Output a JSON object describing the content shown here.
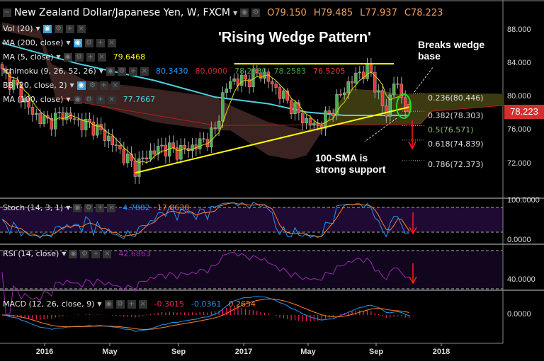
{
  "header": {
    "symbol_title": "New Zealand Dollar/Japanese Yen, W, FXCM",
    "open": "O79.150",
    "high": "H79.485",
    "low": "L77.937",
    "close": "C78.223"
  },
  "indicators": [
    {
      "label": "Vol (20)",
      "values": []
    },
    {
      "label": "MA (200, close)",
      "values": []
    },
    {
      "label": "MA (5, close)",
      "values": [
        {
          "v": "79.6468",
          "color": "#ffff00"
        }
      ]
    },
    {
      "label": "Ichimoku (9, 26, 52, 26)",
      "values": [
        {
          "v": "80.3430",
          "color": "#2196f3"
        },
        {
          "v": "80.0900",
          "color": "#c62828"
        },
        {
          "v": "78.2230",
          "color": "#43a047"
        },
        {
          "v": "78.2583",
          "color": "#43a047"
        },
        {
          "v": "76.5205",
          "color": "#e53935"
        }
      ]
    },
    {
      "label": "BB (20, close, 2)",
      "values": []
    },
    {
      "label": "MA (100, close)",
      "values": [
        {
          "v": "77.7667",
          "color": "#4dd0e1"
        }
      ]
    }
  ],
  "annotations": {
    "title": "'Rising Wedge Pattern'",
    "breaks": "Breaks wedge base",
    "support": "100-SMA is strong support"
  },
  "fib_levels": [
    "0.236(80.446)",
    "0.382(78.303)",
    "0.5(76.571)",
    "0.618(74.839)",
    "0.786(72.373)"
  ],
  "price_axis": [
    "88.000",
    "84.000",
    "80.000",
    "76.000",
    "72.000"
  ],
  "last_price": "78.223",
  "stoch": {
    "label": "Stoch (14, 3, 1)",
    "k": "4.7882",
    "d": "17.8638",
    "axis": [
      "100.0000",
      "0.0000"
    ]
  },
  "rsi": {
    "label": "RSI (14, close)",
    "value": "42.6863",
    "axis": [
      "40.0000"
    ]
  },
  "macd": {
    "label": "MACD (12, 26, close, 9)",
    "hist": "-0.3015",
    "macd": "-0.0361",
    "signal": "0.2654",
    "axis": [
      "0.0000"
    ]
  },
  "time_axis": [
    "2016",
    "May",
    "Sep",
    "2017",
    "May",
    "Sep",
    "2018"
  ],
  "colors": {
    "up": "#4caf50",
    "down": "#e53935",
    "accent": "#d32f2f"
  },
  "chart_data": {
    "type": "candlestick",
    "title": "New Zealand Dollar/Japanese Yen, W, FXCM",
    "interval": "weekly",
    "ylim": [
      69,
      90
    ],
    "close_anchors_week_price": [
      [
        0,
        83
      ],
      [
        4,
        81
      ],
      [
        8,
        78
      ],
      [
        12,
        77
      ],
      [
        16,
        78
      ],
      [
        20,
        77
      ],
      [
        24,
        76.5
      ],
      [
        28,
        75
      ],
      [
        32,
        73
      ],
      [
        35,
        71.5
      ],
      [
        38,
        73
      ],
      [
        42,
        74
      ],
      [
        46,
        73.5
      ],
      [
        50,
        74
      ],
      [
        54,
        75
      ],
      [
        56,
        76
      ],
      [
        58,
        80
      ],
      [
        60,
        82
      ],
      [
        64,
        82
      ],
      [
        68,
        83
      ],
      [
        72,
        81
      ],
      [
        76,
        79
      ],
      [
        80,
        77
      ],
      [
        83,
        76.5
      ],
      [
        86,
        78
      ],
      [
        90,
        81
      ],
      [
        94,
        83
      ],
      [
        97,
        83
      ],
      [
        99,
        80
      ],
      [
        101,
        78
      ],
      [
        103,
        82
      ],
      [
        105,
        80
      ],
      [
        107,
        78.2
      ]
    ],
    "ma100_week_price": [
      [
        0,
        86.5
      ],
      [
        20,
        84
      ],
      [
        40,
        82
      ],
      [
        56,
        80
      ],
      [
        70,
        79.2
      ],
      [
        80,
        78.2
      ],
      [
        90,
        77.8
      ],
      [
        107,
        77.8
      ]
    ],
    "wedge_lower": [
      [
        35,
        70.9
      ],
      [
        107,
        78.8
      ]
    ],
    "wedge_upper": [
      [
        61,
        84
      ],
      [
        103,
        84
      ]
    ],
    "fib_retracement": [
      0.236,
      0.382,
      0.5,
      0.618,
      0.786
    ]
  }
}
